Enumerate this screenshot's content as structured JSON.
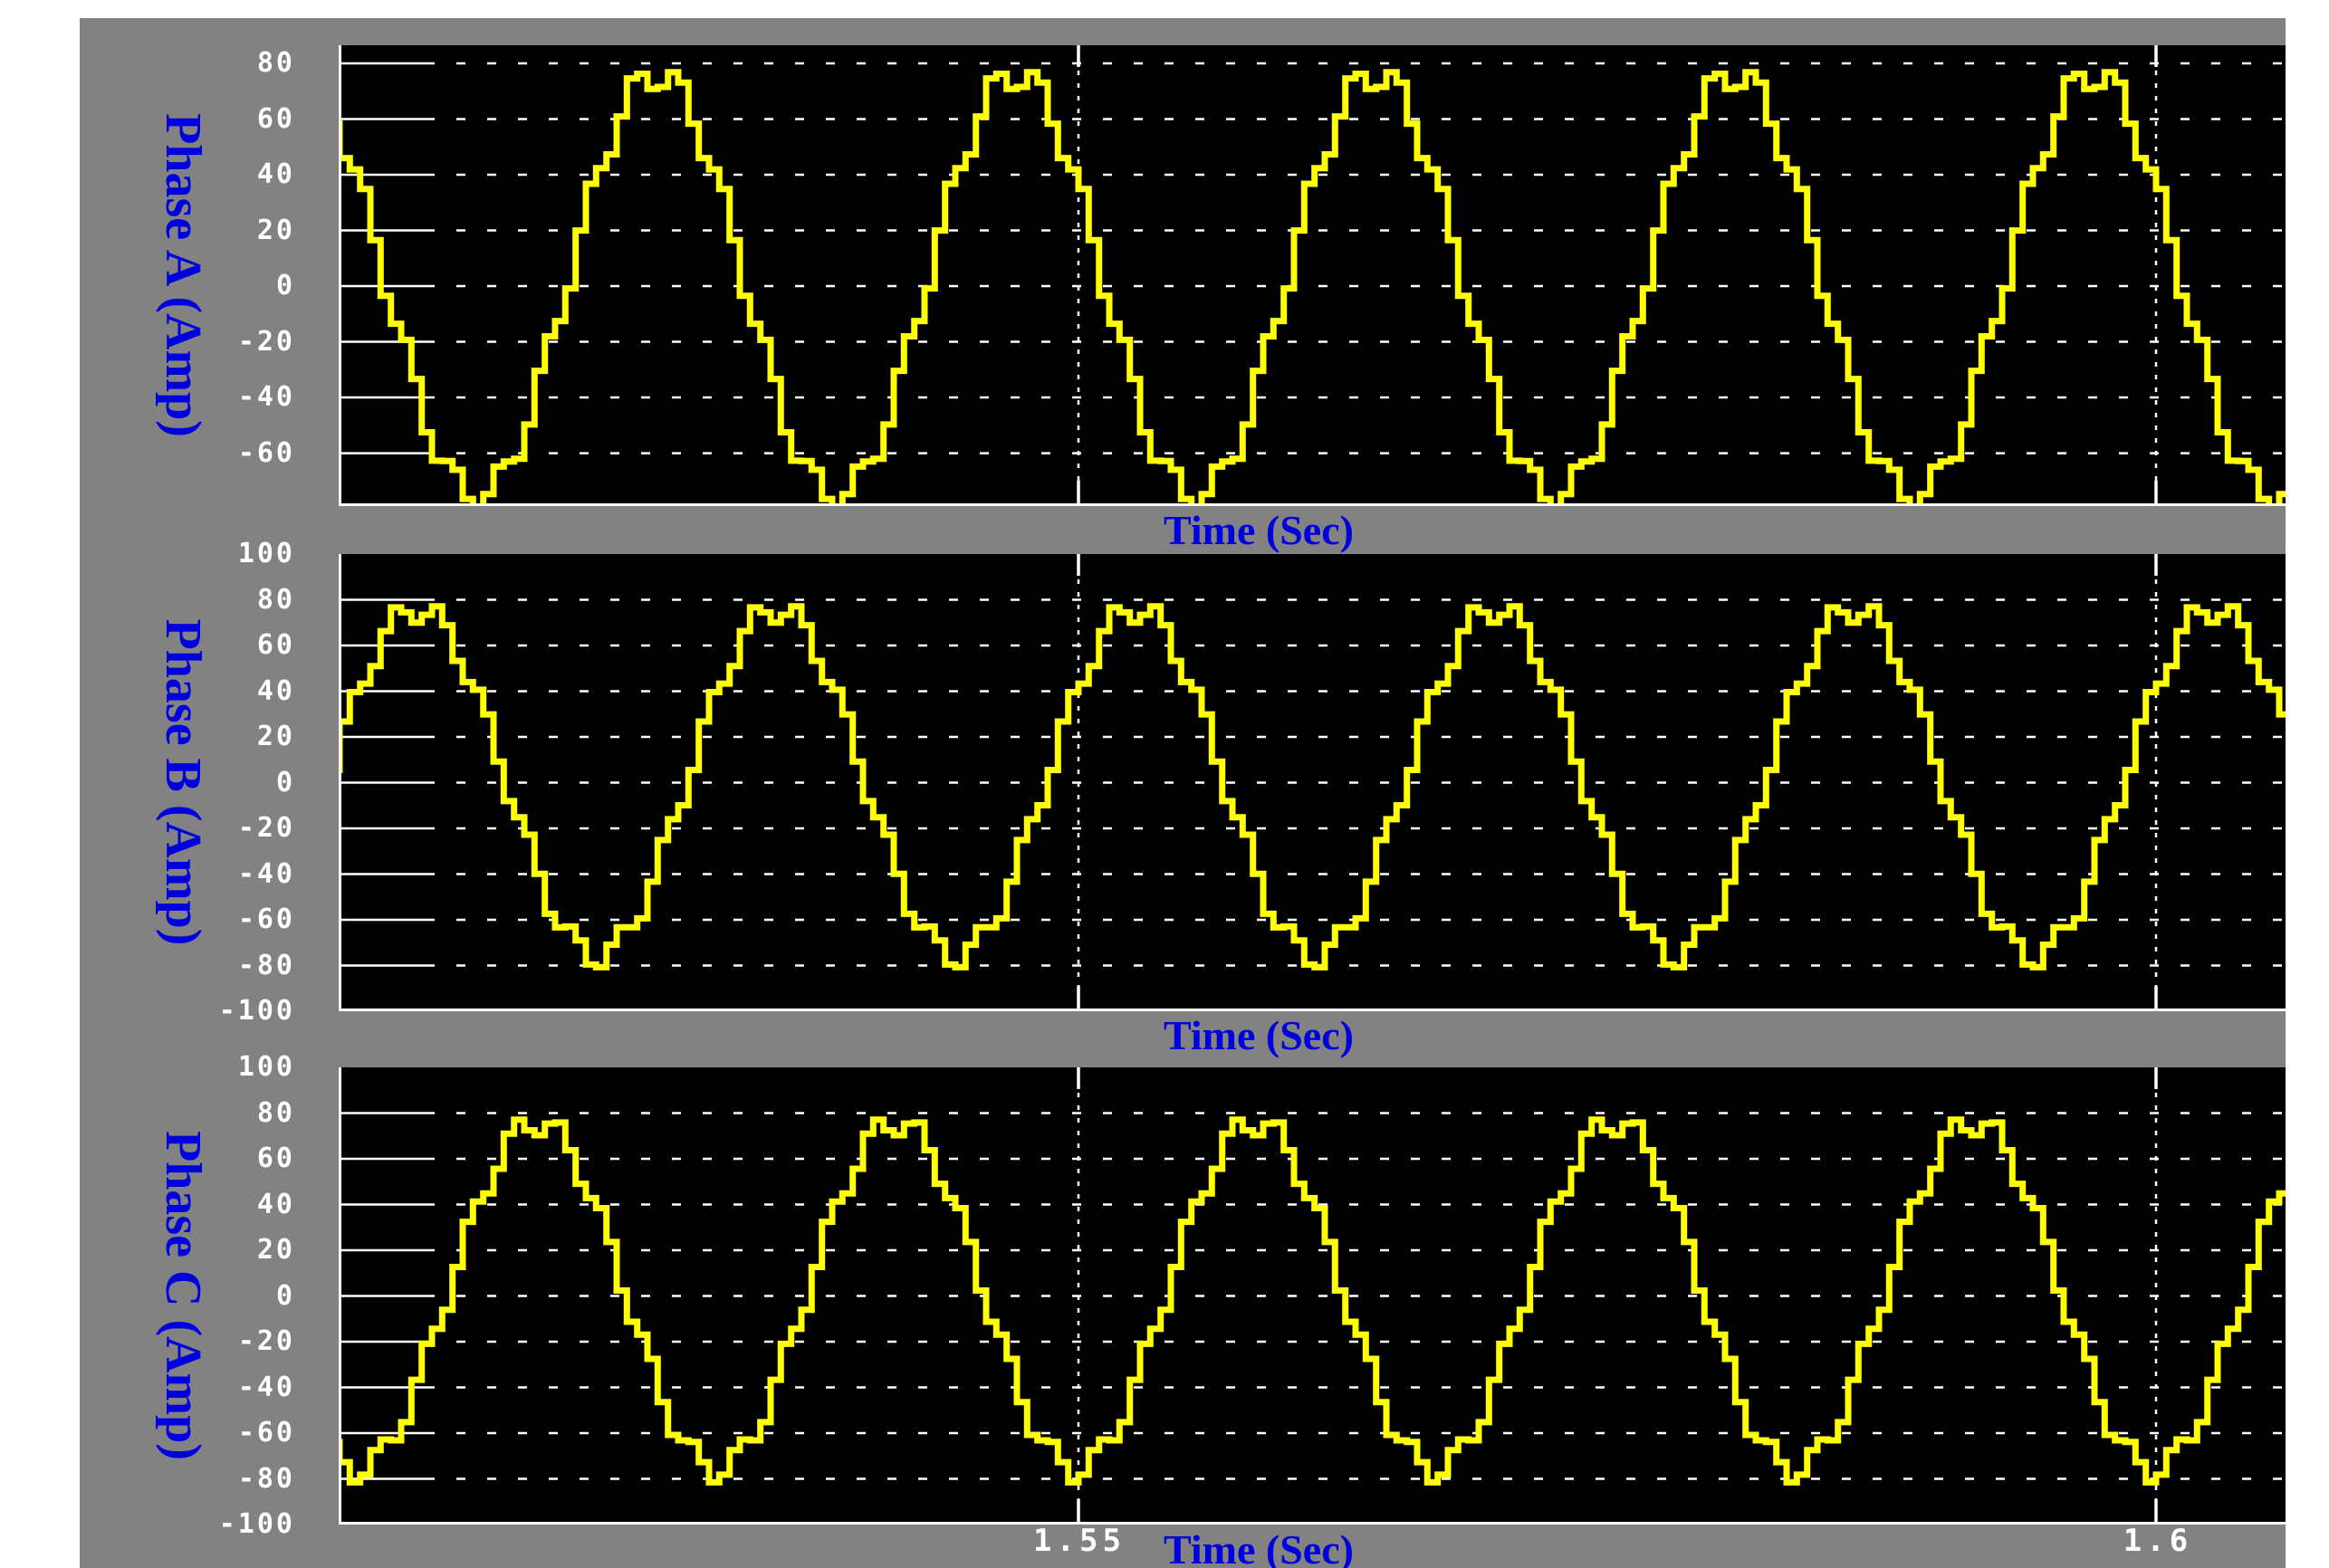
{
  "colors": {
    "trace": "#FFFF00",
    "grid": "#FFFFFF",
    "plot_background": "#000000",
    "panel_background": "#828282",
    "page_background": "#FFFFFF",
    "label_blue": "#0000DE",
    "tick_text": "#FFFFFF"
  },
  "chart_data": [
    {
      "type": "line",
      "title": "",
      "ylabel": "Phase A (Amp)",
      "xlabel": "Time (Sec)",
      "xlim": [
        1.5157,
        1.6061
      ],
      "ylim": [
        -79,
        86.5
      ],
      "xticks": [
        1.55,
        1.6
      ],
      "ytick_labels": [
        "80",
        "60",
        "40",
        "20",
        "0",
        "-20",
        "-40",
        "-60"
      ],
      "ytick_values": [
        80,
        60,
        40,
        20,
        0,
        -20,
        -40,
        -60
      ],
      "grid": "white dashed on black, vertical dotted gridlines at x ticks",
      "legend": "none",
      "series": [
        {
          "name": "Phase A current",
          "color": "#FFFF00",
          "shape": "zero-order-hold stepped sine with PWM ripple, trough clipped at plot bottom",
          "frequency_hz": 60,
          "amplitude": 76,
          "ripple_amplitude": 6,
          "ripple_harmonic": 8,
          "sample_hold_hz": 2100,
          "phase_deg": 0,
          "crest_time_sec": 1.5302
        }
      ]
    },
    {
      "type": "line",
      "title": "",
      "ylabel": "Phase B (Amp)",
      "xlabel": "Time (Sec)",
      "xlim": [
        1.5157,
        1.6061
      ],
      "ylim": [
        -100,
        100
      ],
      "xticks": [
        1.55,
        1.6
      ],
      "ytick_labels": [
        "100",
        "80",
        "60",
        "40",
        "20",
        "0",
        "-20",
        "-40",
        "-60",
        "-80",
        "-100"
      ],
      "ytick_values": [
        100,
        80,
        60,
        40,
        20,
        0,
        -20,
        -40,
        -60,
        -80,
        -100
      ],
      "grid": "white dashed on black, vertical dotted gridlines at x ticks",
      "legend": "none",
      "series": [
        {
          "name": "Phase B current",
          "color": "#FFFF00",
          "shape": "zero-order-hold stepped sine with PWM ripple",
          "frequency_hz": 60,
          "amplitude": 76,
          "ripple_amplitude": 6,
          "ripple_harmonic": 8,
          "sample_hold_hz": 2100,
          "phase_deg": -120,
          "crest_time_sec": 1.5302
        }
      ]
    },
    {
      "type": "line",
      "title": "",
      "ylabel": "Phase C (Amp)",
      "xlabel": "Time (Sec)",
      "xlim": [
        1.5157,
        1.6061
      ],
      "ylim": [
        -100,
        100
      ],
      "xticks": [
        1.55,
        1.6
      ],
      "xtick_labels": [
        "1.55",
        "1.6"
      ],
      "ytick_labels": [
        "100",
        "80",
        "60",
        "40",
        "20",
        "0",
        "-20",
        "-40",
        "-60",
        "-80",
        "-100"
      ],
      "ytick_values": [
        100,
        80,
        60,
        40,
        20,
        0,
        -20,
        -40,
        -60,
        -80,
        -100
      ],
      "grid": "white dashed on black, vertical dotted gridlines at x ticks",
      "legend": "none",
      "series": [
        {
          "name": "Phase C current",
          "color": "#FFFF00",
          "shape": "zero-order-hold stepped sine with PWM ripple",
          "frequency_hz": 60,
          "amplitude": 76,
          "ripple_amplitude": 6,
          "ripple_harmonic": 8,
          "sample_hold_hz": 2100,
          "phase_deg": 120,
          "crest_time_sec": 1.5302
        }
      ]
    }
  ]
}
